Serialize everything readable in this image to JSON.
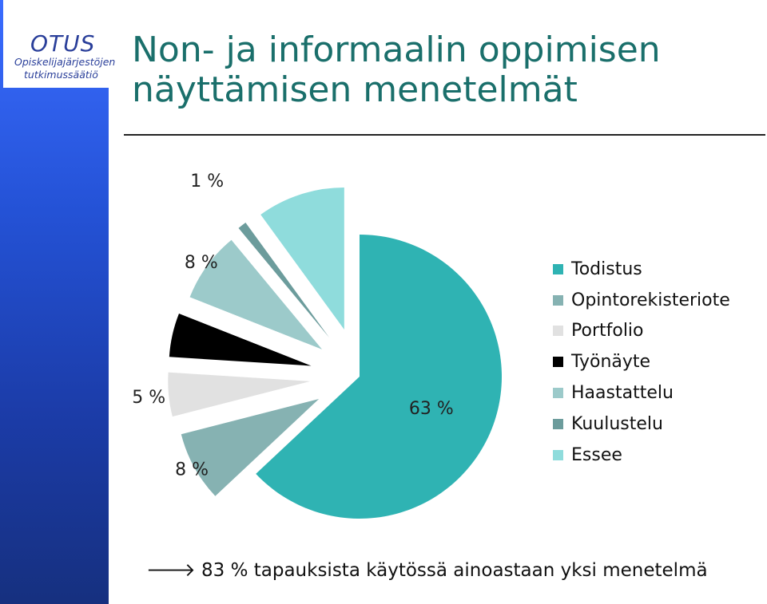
{
  "logo": {
    "name": "OTUS",
    "line1": "Opiskelijajärjestöjen",
    "line2": "tutkimussäätiö"
  },
  "slide": {
    "title": "Non- ja informaalin oppimisen näyttämisen menetelmät"
  },
  "chart_data": {
    "type": "pie",
    "exploded": true,
    "categories": [
      "Todistus",
      "Opintorekisteriote",
      "Portfolio",
      "Työnäyte",
      "Haastattelu",
      "Kuulustelu",
      "Essee"
    ],
    "values": [
      63,
      8,
      5,
      5,
      8,
      1,
      10
    ],
    "labels": [
      "63 %",
      "8 %",
      "5 %",
      "",
      "8 %",
      "1 %",
      "10 %"
    ],
    "colors": [
      "#2fb3b3",
      "#86b2b2",
      "#e1e1e1",
      "#000000",
      "#9ccaca",
      "#6c9c9c",
      "#8fdcdc"
    ],
    "legend_position": "right"
  },
  "footnote": {
    "arrow": "🡒",
    "text": "83 % tapauksista käytössä ainoastaan yksi menetelmä"
  }
}
